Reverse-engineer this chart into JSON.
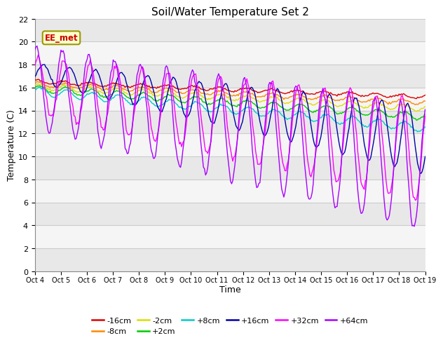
{
  "title": "Soil/Water Temperature Set 2",
  "xlabel": "Time",
  "ylabel": "Temperature (C)",
  "ylim": [
    0,
    22
  ],
  "yticks": [
    0,
    2,
    4,
    6,
    8,
    10,
    12,
    14,
    16,
    18,
    20,
    22
  ],
  "xtick_labels": [
    "Oct 4",
    "Oct 5",
    "Oct 6",
    "Oct 7",
    "Oct 8",
    "Oct 9",
    "Oct 10",
    "Oct 11",
    "Oct 12",
    "Oct 13",
    "Oct 14",
    "Oct 15",
    "Oct 16",
    "Oct 17",
    "Oct 18",
    "Oct 19"
  ],
  "series": [
    {
      "label": "-16cm",
      "color": "#dd0000"
    },
    {
      "label": "-8cm",
      "color": "#ff8800"
    },
    {
      "label": "-2cm",
      "color": "#dddd00"
    },
    {
      "label": "+2cm",
      "color": "#00cc00"
    },
    {
      "label": "+8cm",
      "color": "#00cccc"
    },
    {
      "label": "+16cm",
      "color": "#0000aa"
    },
    {
      "label": "+32cm",
      "color": "#ff00ff"
    },
    {
      "label": "+64cm",
      "color": "#aa00ff"
    }
  ],
  "annotation_text": "EE_met",
  "annotation_color": "#cc0000",
  "annotation_bg": "#ffffcc",
  "background_color": "#ffffff",
  "grid_color": "#cccccc",
  "plot_bg_light": "#f0f0f0",
  "plot_bg_dark": "#e0e0e0"
}
